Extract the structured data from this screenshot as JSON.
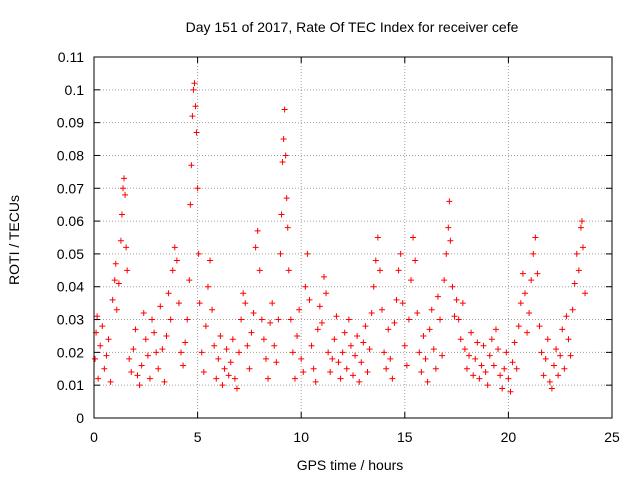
{
  "chart_data": {
    "type": "scatter",
    "title": "Day 151 of 2017, Rate Of TEC Index for receiver cefe",
    "xlabel": "GPS time / hours",
    "ylabel": "ROTI / TECUs",
    "xlim": [
      0,
      25
    ],
    "ylim": [
      0,
      0.11
    ],
    "x_ticks": [
      "0",
      "5",
      "10",
      "15",
      "20",
      "25"
    ],
    "y_ticks": [
      "0",
      "0.01",
      "0.02",
      "0.03",
      "0.04",
      "0.05",
      "0.06",
      "0.07",
      "0.08",
      "0.09",
      "0.1",
      "0.11"
    ],
    "grid": true,
    "legend": "none",
    "marker": "+",
    "color": "#ff0000",
    "series": [
      {
        "points": [
          [
            0.05,
            0.018
          ],
          [
            0.1,
            0.026
          ],
          [
            0.15,
            0.031
          ],
          [
            0.2,
            0.012
          ],
          [
            0.3,
            0.022
          ],
          [
            0.4,
            0.028
          ],
          [
            0.5,
            0.015
          ],
          [
            0.6,
            0.019
          ],
          [
            0.7,
            0.024
          ],
          [
            0.8,
            0.011
          ],
          [
            0.9,
            0.036
          ],
          [
            1.0,
            0.042
          ],
          [
            1.05,
            0.047
          ],
          [
            1.1,
            0.033
          ],
          [
            1.2,
            0.041
          ],
          [
            1.3,
            0.054
          ],
          [
            1.35,
            0.062
          ],
          [
            1.4,
            0.07
          ],
          [
            1.45,
            0.073
          ],
          [
            1.5,
            0.068
          ],
          [
            1.55,
            0.052
          ],
          [
            1.6,
            0.045
          ],
          [
            1.7,
            0.018
          ],
          [
            1.8,
            0.014
          ],
          [
            1.9,
            0.021
          ],
          [
            2.0,
            0.027
          ],
          [
            2.1,
            0.013
          ],
          [
            2.2,
            0.01
          ],
          [
            2.3,
            0.016
          ],
          [
            2.4,
            0.032
          ],
          [
            2.5,
            0.024
          ],
          [
            2.6,
            0.019
          ],
          [
            2.7,
            0.012
          ],
          [
            2.8,
            0.03
          ],
          [
            2.9,
            0.026
          ],
          [
            3.0,
            0.02
          ],
          [
            3.1,
            0.015
          ],
          [
            3.2,
            0.034
          ],
          [
            3.3,
            0.021
          ],
          [
            3.4,
            0.011
          ],
          [
            3.5,
            0.025
          ],
          [
            3.6,
            0.038
          ],
          [
            3.7,
            0.03
          ],
          [
            3.8,
            0.045
          ],
          [
            3.9,
            0.052
          ],
          [
            4.0,
            0.048
          ],
          [
            4.1,
            0.035
          ],
          [
            4.2,
            0.02
          ],
          [
            4.3,
            0.016
          ],
          [
            4.4,
            0.023
          ],
          [
            4.5,
            0.03
          ],
          [
            4.6,
            0.042
          ],
          [
            4.65,
            0.065
          ],
          [
            4.7,
            0.077
          ],
          [
            4.75,
            0.092
          ],
          [
            4.8,
            0.1
          ],
          [
            4.85,
            0.102
          ],
          [
            4.9,
            0.095
          ],
          [
            4.95,
            0.087
          ],
          [
            5.0,
            0.07
          ],
          [
            5.05,
            0.05
          ],
          [
            5.1,
            0.035
          ],
          [
            5.2,
            0.02
          ],
          [
            5.3,
            0.014
          ],
          [
            5.4,
            0.028
          ],
          [
            5.5,
            0.04
          ],
          [
            5.6,
            0.048
          ],
          [
            5.7,
            0.033
          ],
          [
            5.8,
            0.022
          ],
          [
            5.9,
            0.012
          ],
          [
            6.0,
            0.018
          ],
          [
            6.1,
            0.025
          ],
          [
            6.2,
            0.01
          ],
          [
            6.3,
            0.015
          ],
          [
            6.4,
            0.021
          ],
          [
            6.5,
            0.013
          ],
          [
            6.6,
            0.017
          ],
          [
            6.7,
            0.024
          ],
          [
            6.8,
            0.012
          ],
          [
            6.9,
            0.009
          ],
          [
            7.0,
            0.02
          ],
          [
            7.1,
            0.03
          ],
          [
            7.2,
            0.038
          ],
          [
            7.3,
            0.035
          ],
          [
            7.4,
            0.022
          ],
          [
            7.5,
            0.015
          ],
          [
            7.6,
            0.026
          ],
          [
            7.7,
            0.032
          ],
          [
            7.8,
            0.052
          ],
          [
            7.9,
            0.057
          ],
          [
            8.0,
            0.045
          ],
          [
            8.1,
            0.03
          ],
          [
            8.2,
            0.024
          ],
          [
            8.3,
            0.018
          ],
          [
            8.4,
            0.012
          ],
          [
            8.5,
            0.029
          ],
          [
            8.6,
            0.035
          ],
          [
            8.7,
            0.022
          ],
          [
            8.8,
            0.017
          ],
          [
            8.9,
            0.03
          ],
          [
            9.0,
            0.05
          ],
          [
            9.05,
            0.062
          ],
          [
            9.1,
            0.078
          ],
          [
            9.15,
            0.085
          ],
          [
            9.2,
            0.094
          ],
          [
            9.25,
            0.08
          ],
          [
            9.3,
            0.067
          ],
          [
            9.35,
            0.058
          ],
          [
            9.4,
            0.045
          ],
          [
            9.5,
            0.03
          ],
          [
            9.6,
            0.02
          ],
          [
            9.7,
            0.012
          ],
          [
            9.8,
            0.025
          ],
          [
            9.9,
            0.033
          ],
          [
            10.0,
            0.018
          ],
          [
            10.1,
            0.014
          ],
          [
            10.2,
            0.04
          ],
          [
            10.3,
            0.05
          ],
          [
            10.4,
            0.036
          ],
          [
            10.5,
            0.022
          ],
          [
            10.6,
            0.015
          ],
          [
            10.7,
            0.011
          ],
          [
            10.8,
            0.027
          ],
          [
            10.9,
            0.034
          ],
          [
            11.0,
            0.029
          ],
          [
            11.1,
            0.043
          ],
          [
            11.2,
            0.038
          ],
          [
            11.3,
            0.02
          ],
          [
            11.4,
            0.014
          ],
          [
            11.5,
            0.018
          ],
          [
            11.6,
            0.024
          ],
          [
            11.7,
            0.031
          ],
          [
            11.8,
            0.017
          ],
          [
            11.9,
            0.012
          ],
          [
            12.0,
            0.02
          ],
          [
            12.1,
            0.026
          ],
          [
            12.2,
            0.015
          ],
          [
            12.3,
            0.03
          ],
          [
            12.4,
            0.022
          ],
          [
            12.5,
            0.013
          ],
          [
            12.6,
            0.019
          ],
          [
            12.7,
            0.025
          ],
          [
            12.8,
            0.011
          ],
          [
            12.9,
            0.017
          ],
          [
            13.0,
            0.023
          ],
          [
            13.1,
            0.028
          ],
          [
            13.2,
            0.014
          ],
          [
            13.3,
            0.021
          ],
          [
            13.4,
            0.032
          ],
          [
            13.5,
            0.04
          ],
          [
            13.6,
            0.048
          ],
          [
            13.7,
            0.055
          ],
          [
            13.8,
            0.045
          ],
          [
            13.9,
            0.033
          ],
          [
            14.0,
            0.02
          ],
          [
            14.1,
            0.015
          ],
          [
            14.2,
            0.027
          ],
          [
            14.3,
            0.018
          ],
          [
            14.4,
            0.012
          ],
          [
            14.5,
            0.029
          ],
          [
            14.6,
            0.036
          ],
          [
            14.7,
            0.045
          ],
          [
            14.8,
            0.05
          ],
          [
            14.9,
            0.035
          ],
          [
            15.0,
            0.022
          ],
          [
            15.1,
            0.016
          ],
          [
            15.2,
            0.03
          ],
          [
            15.3,
            0.042
          ],
          [
            15.4,
            0.055
          ],
          [
            15.5,
            0.048
          ],
          [
            15.6,
            0.032
          ],
          [
            15.7,
            0.02
          ],
          [
            15.8,
            0.014
          ],
          [
            15.9,
            0.025
          ],
          [
            16.0,
            0.018
          ],
          [
            16.1,
            0.011
          ],
          [
            16.2,
            0.027
          ],
          [
            16.3,
            0.033
          ],
          [
            16.4,
            0.021
          ],
          [
            16.5,
            0.015
          ],
          [
            16.6,
            0.037
          ],
          [
            16.7,
            0.03
          ],
          [
            16.8,
            0.019
          ],
          [
            16.9,
            0.042
          ],
          [
            17.0,
            0.05
          ],
          [
            17.1,
            0.058
          ],
          [
            17.15,
            0.066
          ],
          [
            17.2,
            0.054
          ],
          [
            17.3,
            0.04
          ],
          [
            17.4,
            0.031
          ],
          [
            17.5,
            0.036
          ],
          [
            17.6,
            0.03
          ],
          [
            17.7,
            0.024
          ],
          [
            17.8,
            0.035
          ],
          [
            17.9,
            0.021
          ],
          [
            18.0,
            0.015
          ],
          [
            18.1,
            0.019
          ],
          [
            18.2,
            0.026
          ],
          [
            18.3,
            0.013
          ],
          [
            18.4,
            0.018
          ],
          [
            18.5,
            0.023
          ],
          [
            18.6,
            0.012
          ],
          [
            18.7,
            0.016
          ],
          [
            18.8,
            0.022
          ],
          [
            18.9,
            0.014
          ],
          [
            19.0,
            0.01
          ],
          [
            19.1,
            0.019
          ],
          [
            19.2,
            0.024
          ],
          [
            19.3,
            0.016
          ],
          [
            19.4,
            0.027
          ],
          [
            19.5,
            0.021
          ],
          [
            19.6,
            0.013
          ],
          [
            19.7,
            0.009
          ],
          [
            19.8,
            0.015
          ],
          [
            19.9,
            0.02
          ],
          [
            20.0,
            0.012
          ],
          [
            20.1,
            0.008
          ],
          [
            20.2,
            0.017
          ],
          [
            20.3,
            0.023
          ],
          [
            20.4,
            0.015
          ],
          [
            20.5,
            0.028
          ],
          [
            20.6,
            0.035
          ],
          [
            20.7,
            0.044
          ],
          [
            20.8,
            0.038
          ],
          [
            20.9,
            0.026
          ],
          [
            21.0,
            0.032
          ],
          [
            21.1,
            0.042
          ],
          [
            21.2,
            0.05
          ],
          [
            21.3,
            0.055
          ],
          [
            21.4,
            0.044
          ],
          [
            21.5,
            0.028
          ],
          [
            21.6,
            0.02
          ],
          [
            21.7,
            0.013
          ],
          [
            21.8,
            0.018
          ],
          [
            21.9,
            0.024
          ],
          [
            22.0,
            0.011
          ],
          [
            22.1,
            0.009
          ],
          [
            22.2,
            0.016
          ],
          [
            22.3,
            0.021
          ],
          [
            22.4,
            0.013
          ],
          [
            22.5,
            0.019
          ],
          [
            22.6,
            0.027
          ],
          [
            22.7,
            0.015
          ],
          [
            22.8,
            0.031
          ],
          [
            22.9,
            0.024
          ],
          [
            23.0,
            0.019
          ],
          [
            23.1,
            0.033
          ],
          [
            23.2,
            0.041
          ],
          [
            23.3,
            0.05
          ],
          [
            23.4,
            0.045
          ],
          [
            23.5,
            0.058
          ],
          [
            23.55,
            0.06
          ],
          [
            23.6,
            0.052
          ],
          [
            23.7,
            0.038
          ]
        ]
      }
    ]
  }
}
